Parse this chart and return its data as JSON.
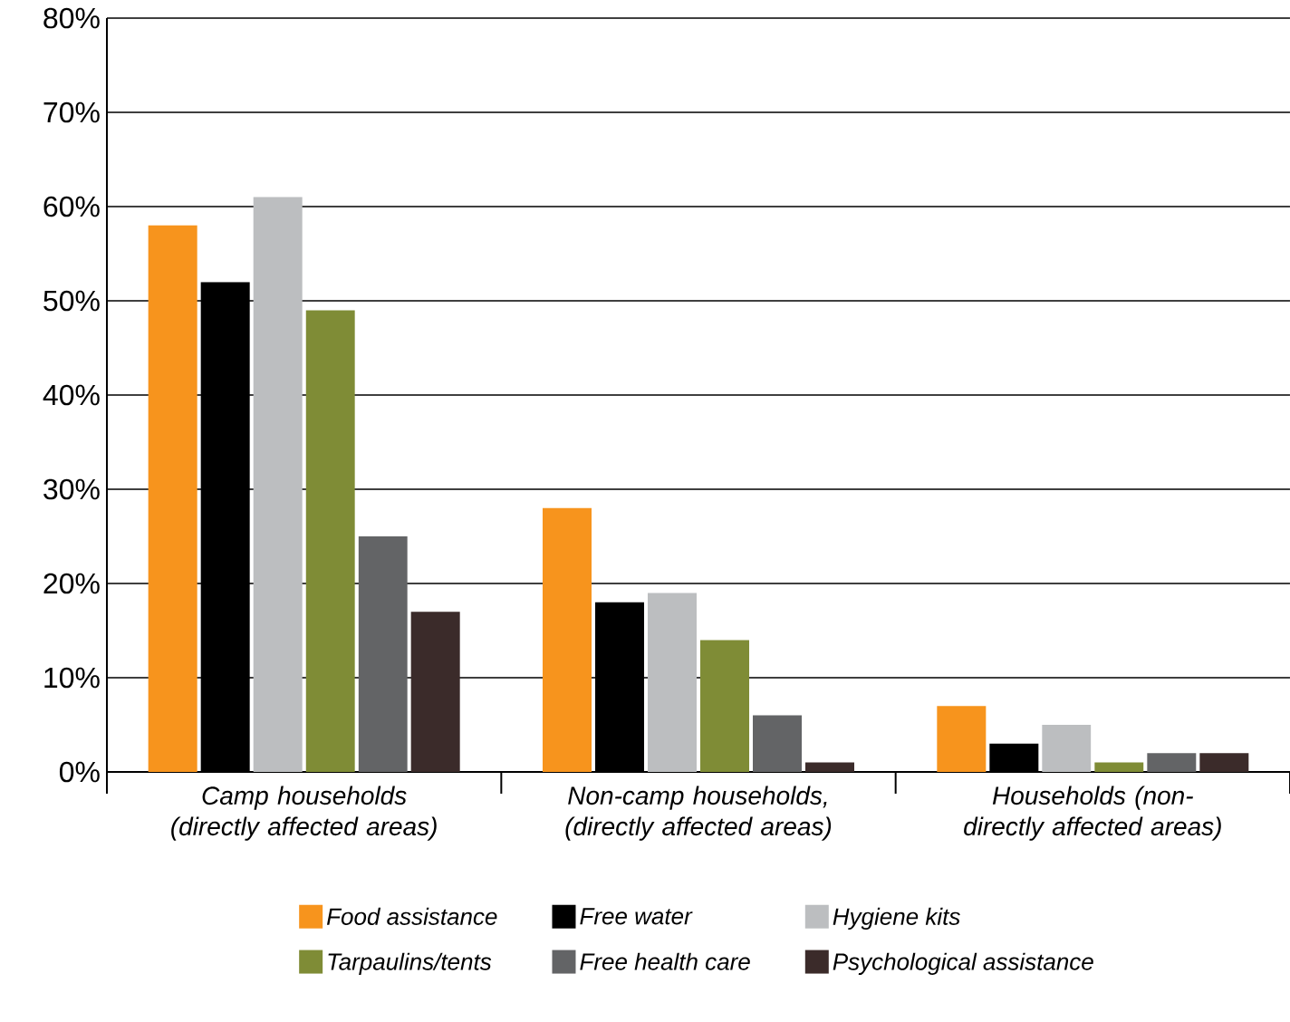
{
  "chart_data": {
    "type": "bar",
    "categories": [
      "Camp households (directly affected areas)",
      "Non-camp households, (directly affected areas)",
      "Households (non-directly affected areas)"
    ],
    "series": [
      {
        "name": "Food assistance",
        "color": "#f7941d",
        "values": [
          58,
          28,
          7
        ]
      },
      {
        "name": "Free water",
        "color": "#000000",
        "values": [
          52,
          18,
          3
        ]
      },
      {
        "name": "Hygiene kits",
        "color": "#bcbec0",
        "values": [
          61,
          19,
          5
        ]
      },
      {
        "name": "Tarpaulins/tents",
        "color": "#7f8c36",
        "values": [
          49,
          14,
          1
        ]
      },
      {
        "name": "Free health care",
        "color": "#636466",
        "values": [
          25,
          6,
          2
        ]
      },
      {
        "name": "Psychological assistance",
        "color": "#3b2b2a",
        "values": [
          17,
          1,
          2
        ]
      }
    ],
    "ylim": [
      0,
      80
    ],
    "yticks": [
      {
        "value": 0,
        "label": "0%"
      },
      {
        "value": 10,
        "label": "10%"
      },
      {
        "value": 20,
        "label": "20%"
      },
      {
        "value": 30,
        "label": "30%"
      },
      {
        "value": 40,
        "label": "40%"
      },
      {
        "value": 50,
        "label": "50%"
      },
      {
        "value": 60,
        "label": "60%"
      },
      {
        "value": 70,
        "label": "70%"
      },
      {
        "value": 80,
        "label": "80%"
      }
    ],
    "grid": "y",
    "legend": "bottom"
  }
}
